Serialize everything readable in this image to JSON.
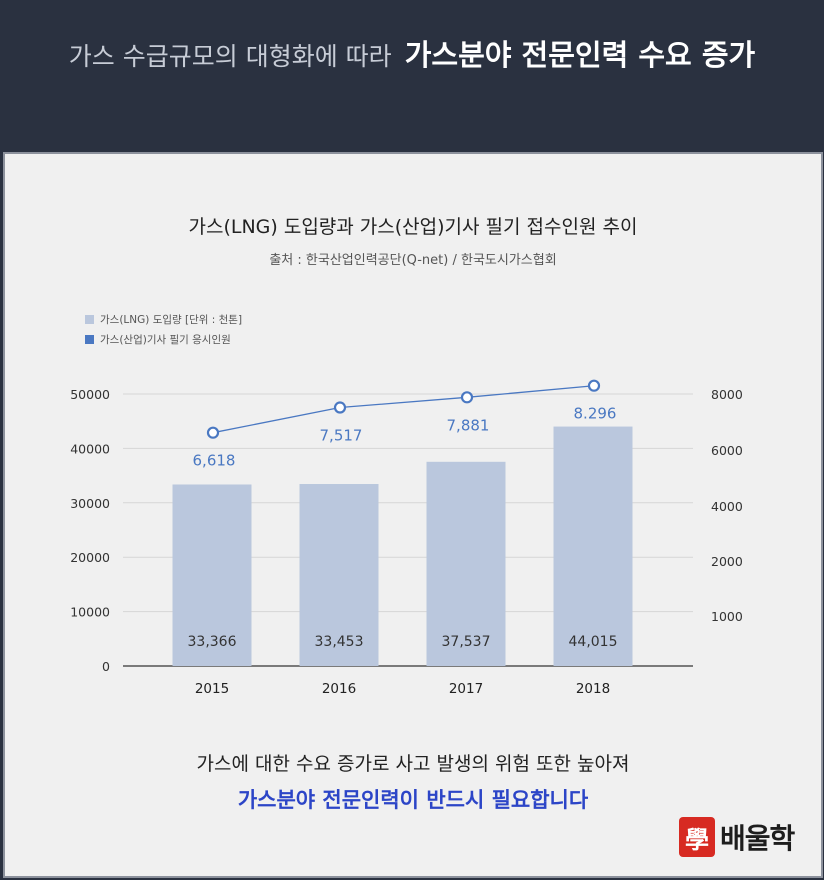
{
  "header": {
    "subtitle": "가스 수급규모의 대형화에 따라",
    "headline": "가스분야 전문인력 수요 증가"
  },
  "chart_data": {
    "type": "bar",
    "title": "가스(LNG) 도입량과 가스(산업)기사 필기 접수인원 추이",
    "subtitle": "출처 : 한국산업인력공단(Q-net) / 한국도시가스협회",
    "categories": [
      "2015",
      "2016",
      "2017",
      "2018"
    ],
    "series": [
      {
        "name": "가스(LNG) 도입량 [단위 : 천톤]",
        "type": "bar",
        "axis": "left",
        "values": [
          33366,
          33453,
          37537,
          44015
        ],
        "labels": [
          "33,366",
          "33,453",
          "37,537",
          "44,015"
        ],
        "color": "#bac7dd"
      },
      {
        "name": "가스(산업)기사 필기 응시인원",
        "type": "line",
        "axis": "right",
        "values": [
          6618,
          7517,
          7881,
          8296
        ],
        "labels": [
          "6,618",
          "7,517",
          "7,881",
          "8.296"
        ],
        "color": "#4a78c2"
      }
    ],
    "y_left": {
      "ticks": [
        "0",
        "10000",
        "20000",
        "30000",
        "40000",
        "50000"
      ],
      "ylim": [
        0,
        50000
      ]
    },
    "y_right": {
      "ticks": [
        "1000",
        "2000",
        "4000",
        "6000",
        "8000"
      ]
    },
    "grid": true,
    "legend": "top-left"
  },
  "footer": {
    "line1": "가스에 대한 수요 증가로 사고 발생의 위험 또한 높아져",
    "line2": "가스분야 전문인력이 반드시 필요합니다"
  },
  "logo": {
    "mark": "學",
    "text": "배울학",
    "color": "#d72a22"
  }
}
